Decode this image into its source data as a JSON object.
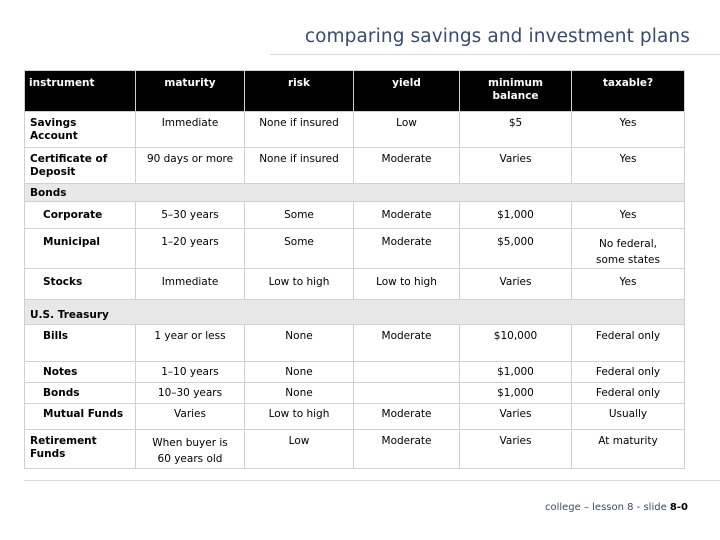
{
  "title": "comparing savings and investment plans",
  "headers": [
    "instrument",
    "maturity",
    "risk",
    "yield",
    "minimum\nbalance",
    "taxable?"
  ],
  "rows": {
    "savings": [
      "Savings\nAccount",
      "Immediate",
      "None if insured",
      "Low",
      "$5",
      "Yes"
    ],
    "cd": [
      "Certificate of\nDeposit",
      "90 days or more",
      "None if insured",
      "Moderate",
      "Varies",
      "Yes"
    ],
    "bonds_group": "Bonds",
    "corporate": [
      "Corporate",
      "5–30 years",
      "Some",
      "Moderate",
      "$1,000",
      "Yes"
    ],
    "municipal": [
      "Municipal",
      "1–20 years",
      "Some",
      "Moderate",
      "$5,000",
      "No federal,\nsome states"
    ],
    "stocks": [
      "Stocks",
      "Immediate",
      "Low to high",
      "Low to high",
      "Varies",
      "Yes"
    ],
    "treasury_group": "U.S. Treasury",
    "bills": [
      "Bills",
      "1 year or less",
      "None",
      "Moderate",
      "$10,000",
      "Federal only"
    ],
    "notes": [
      "Notes",
      "1–10 years",
      "None",
      "",
      "$1,000",
      "Federal only"
    ],
    "tbonds": [
      "Bonds",
      "10–30 years",
      "None",
      "",
      "$1,000",
      "Federal only"
    ],
    "mutual": [
      "Mutual Funds",
      "Varies",
      "Low to high",
      "Moderate",
      "Varies",
      "Usually"
    ],
    "retirement": [
      "Retirement\nFunds",
      "When buyer is\n60 years old",
      "Low",
      "Moderate",
      "Varies",
      "At maturity"
    ]
  },
  "footer": {
    "prefix": "college – lesson 8 - slide ",
    "slide": "8-0"
  }
}
